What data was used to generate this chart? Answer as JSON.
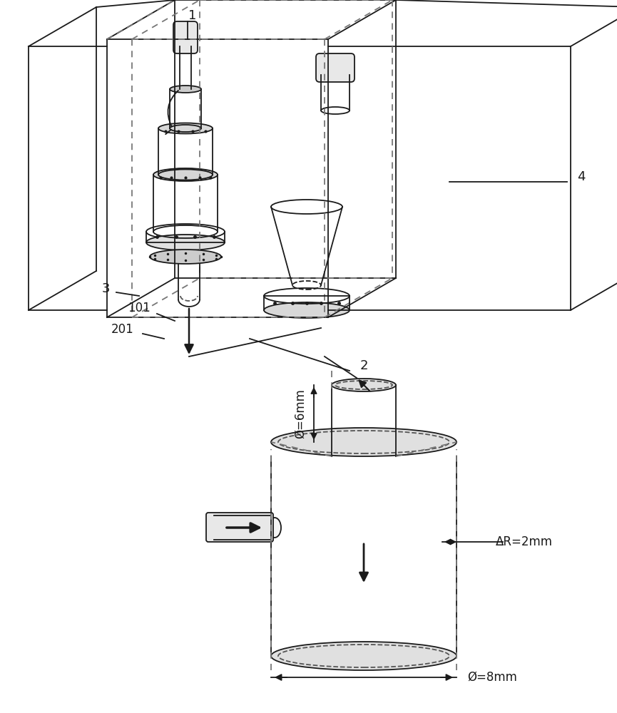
{
  "bg_color": "#ffffff",
  "line_color": "#1a1a1a",
  "dashed_color": "#555555",
  "label_1": "1",
  "label_2": "2",
  "label_3": "3",
  "label_4": "4",
  "label_101": "101",
  "label_201": "201",
  "label_phi6": "Ø=6mm",
  "label_phi8": "Ø=8mm",
  "label_deltaR": "ΔR=2mm",
  "fig_width": 8.65,
  "fig_height": 10.0,
  "dpi": 100
}
